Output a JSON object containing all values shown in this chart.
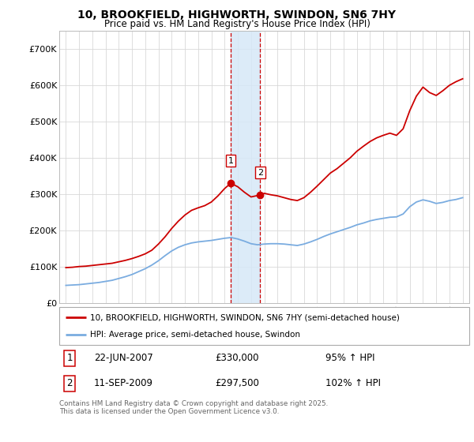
{
  "title": "10, BROOKFIELD, HIGHWORTH, SWINDON, SN6 7HY",
  "subtitle": "Price paid vs. HM Land Registry's House Price Index (HPI)",
  "legend_line1": "10, BROOKFIELD, HIGHWORTH, SWINDON, SN6 7HY (semi-detached house)",
  "legend_line2": "HPI: Average price, semi-detached house, Swindon",
  "footnote": "Contains HM Land Registry data © Crown copyright and database right 2025.\nThis data is licensed under the Open Government Licence v3.0.",
  "transaction1_date": "22-JUN-2007",
  "transaction1_price": "£330,000",
  "transaction1_hpi": "95% ↑ HPI",
  "transaction2_date": "11-SEP-2009",
  "transaction2_price": "£297,500",
  "transaction2_hpi": "102% ↑ HPI",
  "red_color": "#cc0000",
  "blue_color": "#7aace0",
  "marker1_x": 2007.47,
  "marker1_y": 330000,
  "marker2_x": 2009.7,
  "marker2_y": 297500,
  "vline1_x": 2007.47,
  "vline2_x": 2009.7,
  "shade_color": "#d6e8f7",
  "ylim": [
    0,
    750000
  ],
  "xlim_start": 1994.5,
  "xlim_end": 2025.5,
  "yticks": [
    0,
    100000,
    200000,
    300000,
    400000,
    500000,
    600000,
    700000
  ],
  "ylabels": [
    "£0",
    "£100K",
    "£200K",
    "£300K",
    "£400K",
    "£500K",
    "£600K",
    "£700K"
  ]
}
